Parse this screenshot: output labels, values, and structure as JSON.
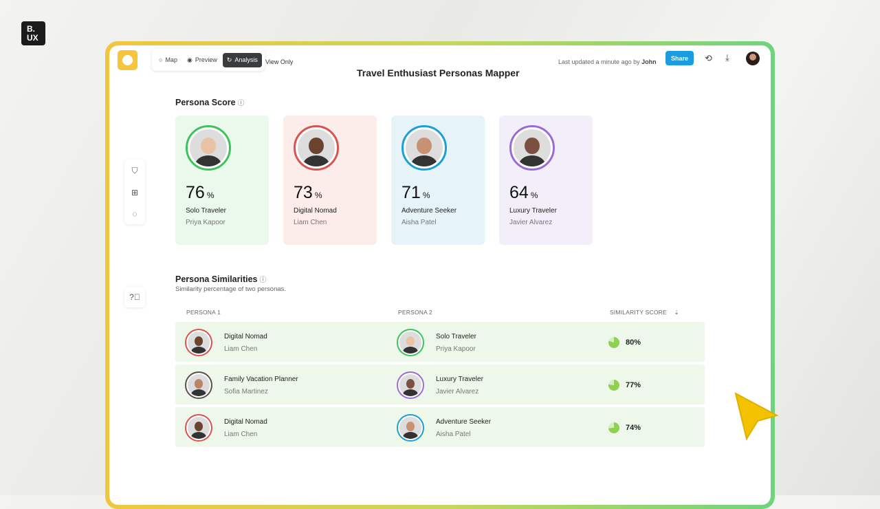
{
  "brand": {
    "logo_text": "B.\nUX"
  },
  "toolbar": {
    "modes": [
      {
        "label": "Map",
        "icon": "circle-icon"
      },
      {
        "label": "Preview",
        "icon": "eye-icon"
      },
      {
        "label": "Analysis",
        "icon": "analysis-icon",
        "active": true
      }
    ],
    "view_only": "View Only",
    "updated_text": "Last updated a minute ago by",
    "updated_by": "John",
    "share_label": "Share"
  },
  "page": {
    "title": "Travel Enthusiast Personas Mapper"
  },
  "persona_score": {
    "heading": "Persona Score",
    "cards": [
      {
        "score": "76",
        "unit": "%",
        "role": "Solo Traveler",
        "name": "Priya Kapoor",
        "bg": "#ebf8ec",
        "ring": "#3cc35a"
      },
      {
        "score": "73",
        "unit": "%",
        "role": "Digital Nomad",
        "name": "Liam Chen",
        "bg": "#fcedeb",
        "ring": "#d9534f"
      },
      {
        "score": "71",
        "unit": "%",
        "role": "Adventure Seeker",
        "name": "Aisha Patel",
        "bg": "#e6f4f9",
        "ring": "#1c9fd4"
      },
      {
        "score": "64",
        "unit": "%",
        "role": "Luxury Traveler",
        "name": "Javier Alvarez",
        "bg": "#f2effa",
        "ring": "#9a6bd6"
      }
    ]
  },
  "similarities": {
    "heading": "Persona Similarities",
    "subtitle": "Similarity percentage of two personas.",
    "columns": [
      "PERSONA 1",
      "PERSONA 2",
      "SIMILARITY SCORE"
    ],
    "rows": [
      {
        "p1_role": "Digital Nomad",
        "p1_name": "Liam Chen",
        "p1_ring": "#d9534f",
        "p2_role": "Solo Traveler",
        "p2_name": "Priya Kapoor",
        "p2_ring": "#3cc35a",
        "score": "80%",
        "fraction": 0.8
      },
      {
        "p1_role": "Family Vacation Planner",
        "p1_name": "Sofia Martinez",
        "p1_ring": "#5b5048",
        "p2_role": "Luxury Traveler",
        "p2_name": "Javier Alvarez",
        "p2_ring": "#9a6bd6",
        "score": "77%",
        "fraction": 0.77
      },
      {
        "p1_role": "Digital Nomad",
        "p1_name": "Liam Chen",
        "p1_ring": "#d9534f",
        "p2_role": "Adventure Seeker",
        "p2_name": "Aisha Patel",
        "p2_ring": "#1c9fd4",
        "score": "74%",
        "fraction": 0.74
      }
    ]
  }
}
